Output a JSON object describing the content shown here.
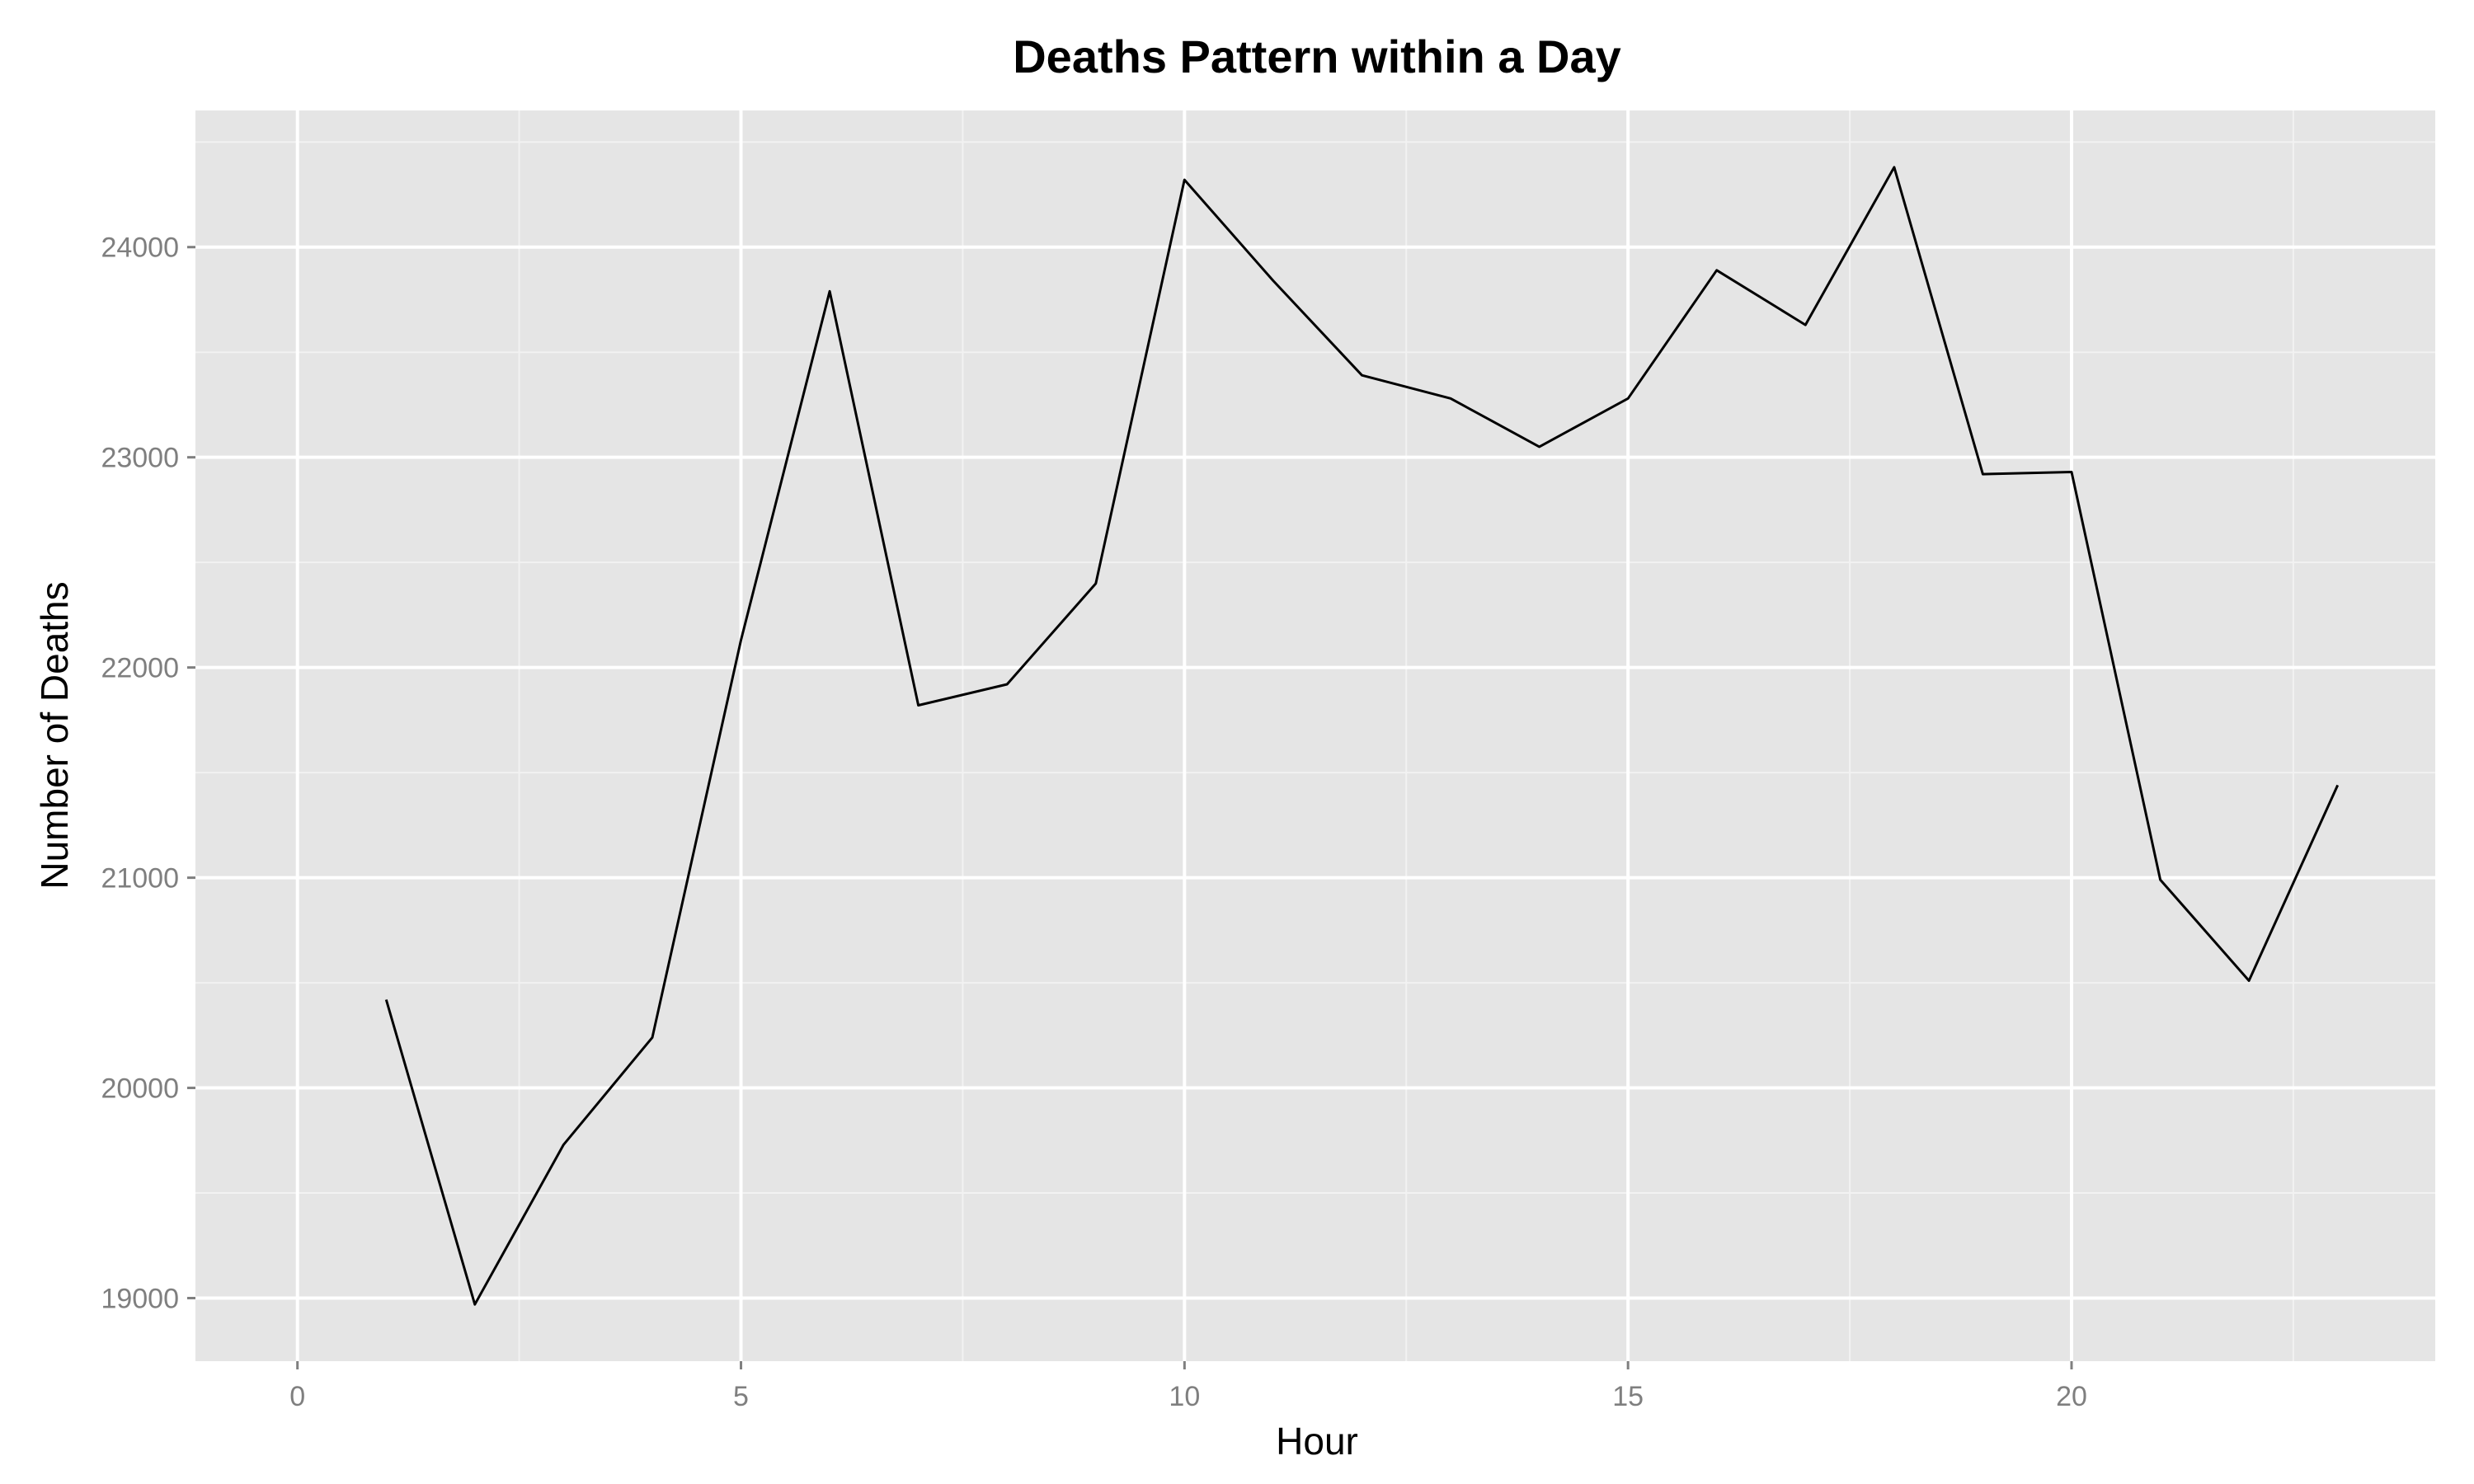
{
  "chart_data": {
    "type": "line",
    "title": "Deaths Pattern within a Day",
    "xlabel": "Hour",
    "ylabel": "Number of Deaths",
    "xlim": [
      -1.15,
      24.1
    ],
    "ylim": [
      18700,
      24650
    ],
    "x_ticks": [
      0,
      5,
      10,
      15,
      20
    ],
    "x_tick_labels": [
      "0",
      "5",
      "10",
      "15",
      "20"
    ],
    "y_ticks": [
      19000,
      20000,
      21000,
      22000,
      23000,
      24000
    ],
    "y_tick_labels": [
      "19000",
      "20000",
      "21000",
      "22000",
      "23000",
      "24000"
    ],
    "grid": true,
    "legend": "none",
    "series": [
      {
        "color": "#000000",
        "x": [
          1,
          2,
          3,
          4,
          5,
          6,
          7,
          8,
          9,
          10,
          11,
          12,
          13,
          14,
          15,
          16,
          17,
          18,
          19,
          20,
          21,
          22,
          23
        ],
        "y": [
          20420,
          18970,
          19730,
          20240,
          22130,
          23790,
          21820,
          21920,
          22400,
          24320,
          23840,
          23390,
          23280,
          23050,
          23280,
          23890,
          23630,
          24380,
          22920,
          22930,
          20990,
          20510,
          21440
        ]
      }
    ],
    "colors": {
      "panel": "#e5e5e5",
      "grid_major": "#ffffff",
      "grid_minor": "#f2f2f2",
      "line": "#000000",
      "tick_text": "#7f7f7f"
    }
  }
}
